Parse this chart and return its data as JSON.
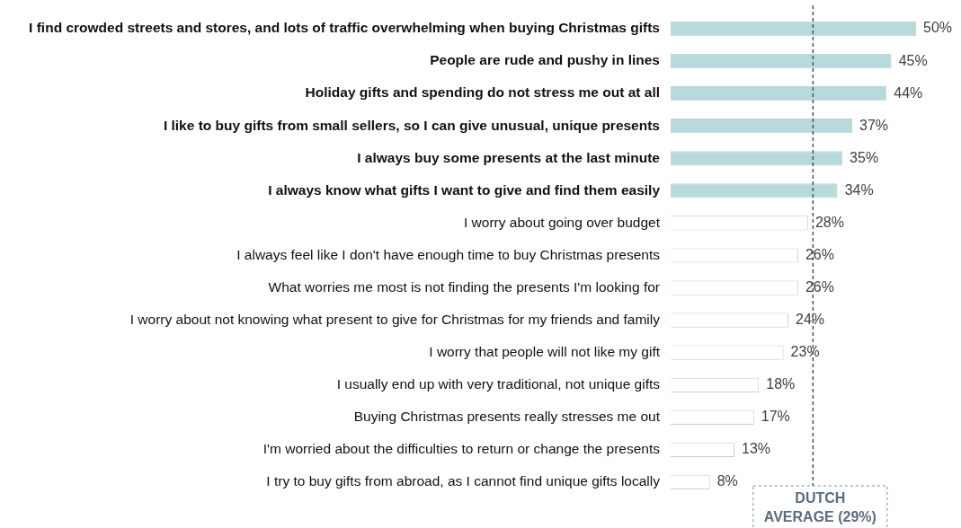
{
  "chart_data": {
    "type": "bar",
    "orientation": "horizontal",
    "categories": [
      "I find crowded streets and stores, and lots of traffic overwhelming when buying Christmas gifts",
      "People are rude and pushy in lines",
      "Holiday gifts and spending do not stress me out at all",
      "I like to buy gifts from small sellers, so I can give unusual, unique presents",
      "I always buy some presents at the last minute",
      "I always know what gifts I want to give and find them easily",
      "I worry about going over budget",
      "I always feel like I don't have enough time to buy Christmas presents",
      "What worries me most is not finding the presents I'm looking for",
      "I worry about not knowing what present to give for Christmas for my friends and family",
      "I worry that people will not like my gift",
      "I usually end up with very traditional, not unique gifts",
      "Buying Christmas presents really stresses me out",
      "I'm worried about the difficulties to return or change the presents",
      "I try to buy gifts from abroad, as I cannot find unique gifts locally"
    ],
    "values": [
      50,
      45,
      44,
      37,
      35,
      34,
      28,
      26,
      26,
      24,
      23,
      18,
      17,
      13,
      8
    ],
    "value_labels": [
      "50%",
      "45%",
      "44%",
      "37%",
      "35%",
      "34%",
      "28%",
      "26%",
      "26%",
      "24%",
      "23%",
      "18%",
      "17%",
      "13%",
      "8%"
    ],
    "colors": [
      "#b7dadd",
      "#b7dadd",
      "#b7dadd",
      "#b7dadd",
      "#b7dadd",
      "#b7dadd",
      "#ffffff",
      "#ffffff",
      "#ffffff",
      "#ffffff",
      "#ffffff",
      "#ffffff",
      "#ffffff",
      "#ffffff",
      "#ffffff"
    ],
    "tick_labels": "y",
    "legend": false,
    "ref_lines": [
      {
        "axis": "x",
        "value": 29,
        "label": "DUTCH AVERAGE (29%)",
        "color": "#44546a",
        "line_style": "dashed"
      }
    ]
  }
}
